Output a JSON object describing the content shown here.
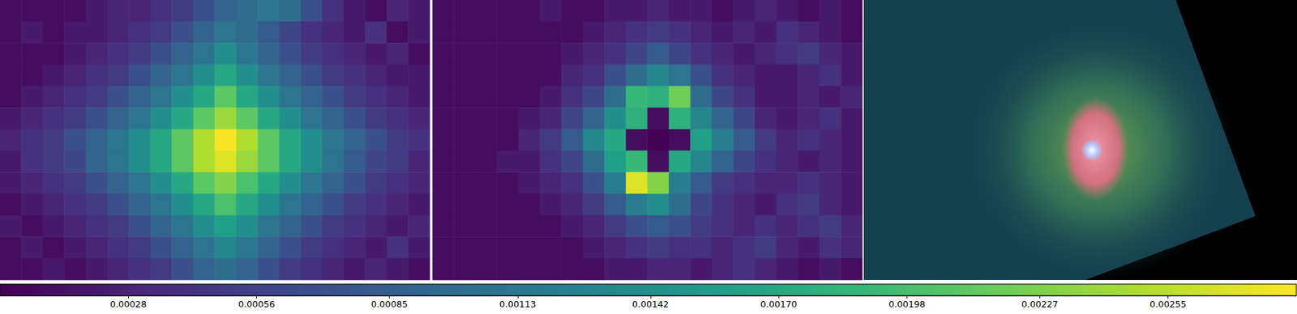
{
  "chart_data": {
    "type": "heatmap",
    "tick_labels": false,
    "panels": [
      {
        "cells": [
          [
            0.0001,
            0.0001,
            0.0001,
            0.0001,
            0.0002,
            0.0003,
            0.0003,
            0.0004,
            0.0005,
            0.0007,
            0.0009,
            0.001,
            0.0011,
            0.001,
            0.0007,
            0.0004,
            0.0002,
            0.0001,
            0.0003,
            0.0002
          ],
          [
            0.0001,
            0.0002,
            0.0001,
            0.0002,
            0.0002,
            0.0003,
            0.0004,
            0.0005,
            0.0007,
            0.0009,
            0.0011,
            0.001,
            0.0008,
            0.0006,
            0.0004,
            0.0003,
            0.0002,
            0.0004,
            0.0001,
            0.0002
          ],
          [
            0.0001,
            0.0001,
            0.0001,
            0.0002,
            0.0003,
            0.0004,
            0.0005,
            0.0007,
            0.0009,
            0.0011,
            0.0014,
            0.0011,
            0.0009,
            0.0007,
            0.0005,
            0.0004,
            0.0003,
            0.0002,
            0.0003,
            0.0001
          ],
          [
            0.0001,
            0.0001,
            0.0002,
            0.0003,
            0.0004,
            0.0005,
            0.0007,
            0.0009,
            0.0011,
            0.0014,
            0.0017,
            0.0014,
            0.0011,
            0.0009,
            0.0007,
            0.0005,
            0.0004,
            0.0003,
            0.0002,
            0.0002
          ],
          [
            0.0001,
            0.0002,
            0.0003,
            0.0004,
            0.0005,
            0.0007,
            0.0009,
            0.0011,
            0.0014,
            0.0017,
            0.0021,
            0.0017,
            0.0014,
            0.0011,
            0.0009,
            0.0007,
            0.0005,
            0.0004,
            0.0003,
            0.0002
          ],
          [
            0.0002,
            0.0003,
            0.0004,
            0.0005,
            0.0007,
            0.0009,
            0.0011,
            0.0014,
            0.0017,
            0.0021,
            0.0024,
            0.0021,
            0.0017,
            0.0014,
            0.0011,
            0.0009,
            0.0007,
            0.0005,
            0.0004,
            0.0003
          ],
          [
            0.0003,
            0.0004,
            0.0005,
            0.0007,
            0.0009,
            0.0011,
            0.0014,
            0.0017,
            0.0021,
            0.0025,
            0.0028,
            0.0025,
            0.0021,
            0.0017,
            0.0014,
            0.0011,
            0.0009,
            0.0007,
            0.0005,
            0.0004
          ],
          [
            0.0002,
            0.0004,
            0.0005,
            0.0006,
            0.0009,
            0.0011,
            0.0014,
            0.0017,
            0.0021,
            0.0025,
            0.0027,
            0.0024,
            0.0021,
            0.0017,
            0.0014,
            0.0011,
            0.0008,
            0.0006,
            0.0005,
            0.0003
          ],
          [
            0.0002,
            0.0003,
            0.0004,
            0.0005,
            0.0007,
            0.0009,
            0.0011,
            0.0014,
            0.0017,
            0.0021,
            0.0023,
            0.002,
            0.0017,
            0.0014,
            0.0011,
            0.0009,
            0.0007,
            0.0005,
            0.0004,
            0.0003
          ],
          [
            0.0001,
            0.0002,
            0.0003,
            0.0004,
            0.0005,
            0.0007,
            0.0009,
            0.0011,
            0.0014,
            0.0017,
            0.002,
            0.0017,
            0.0014,
            0.0011,
            0.0009,
            0.0007,
            0.0005,
            0.0004,
            0.0003,
            0.0002
          ],
          [
            0.0002,
            0.0001,
            0.0002,
            0.0003,
            0.0004,
            0.0005,
            0.0007,
            0.0009,
            0.0011,
            0.0014,
            0.0016,
            0.0014,
            0.0011,
            0.0009,
            0.0007,
            0.0005,
            0.0004,
            0.0003,
            0.0002,
            0.0003
          ],
          [
            0.0001,
            0.0002,
            0.0001,
            0.0002,
            0.0003,
            0.0004,
            0.0005,
            0.0007,
            0.0009,
            0.0011,
            0.0013,
            0.0011,
            0.0009,
            0.0007,
            0.0005,
            0.0004,
            0.0003,
            0.0002,
            0.0004,
            0.0002
          ],
          [
            0.0001,
            0.0001,
            0.0002,
            0.0001,
            0.0002,
            0.0003,
            0.0004,
            0.0005,
            0.0007,
            0.0009,
            0.001,
            0.0009,
            0.0007,
            0.0005,
            0.0004,
            0.0003,
            0.0002,
            0.0003,
            0.0002,
            0.0001
          ]
        ]
      },
      {
        "cells": [
          [
            0.0001,
            0.0001,
            0.0001,
            0.0001,
            0.0001,
            0.0002,
            0.0001,
            0.0001,
            0.0002,
            0.0002,
            0.0003,
            0.0002,
            0.0002,
            0.0001,
            0.0002,
            0.0003,
            0.0002,
            0.0001,
            0.0002,
            0.0001
          ],
          [
            0.0001,
            0.0001,
            0.0001,
            0.0001,
            0.0001,
            0.0001,
            0.0001,
            0.0002,
            0.0003,
            0.0004,
            0.0005,
            0.0004,
            0.0003,
            0.0002,
            0.0003,
            0.0002,
            0.0004,
            0.0003,
            0.0002,
            0.0001
          ],
          [
            0.0001,
            0.0001,
            0.0001,
            0.0001,
            0.0001,
            0.0001,
            0.0002,
            0.0003,
            0.0004,
            0.0006,
            0.0008,
            0.0006,
            0.0004,
            0.0003,
            0.0002,
            0.0003,
            0.0004,
            0.0005,
            0.0003,
            0.0002
          ],
          [
            0.0001,
            0.0001,
            0.0001,
            0.0001,
            0.0001,
            0.0001,
            0.0003,
            0.0004,
            0.0007,
            0.001,
            0.0013,
            0.0011,
            0.0007,
            0.0004,
            0.0003,
            0.0002,
            0.0002,
            0.0003,
            0.0004,
            0.0002
          ],
          [
            0.0001,
            0.0001,
            0.0001,
            0.0001,
            0.0001,
            0.0002,
            0.0004,
            0.0006,
            0.001,
            0.0019,
            0.0018,
            0.0022,
            0.001,
            0.0006,
            0.0004,
            0.0002,
            0.0002,
            0.0003,
            0.0002,
            0.0003
          ],
          [
            0.0001,
            0.0001,
            0.0001,
            0.0001,
            0.0002,
            0.0003,
            0.0006,
            0.0009,
            0.0014,
            0.0018,
            0.0001,
            0.0018,
            0.0013,
            0.0009,
            0.0006,
            0.0003,
            0.0002,
            0.0003,
            0.0004,
            0.0002
          ],
          [
            0.0001,
            0.0001,
            0.0001,
            0.0001,
            0.0003,
            0.0005,
            0.0008,
            0.0013,
            0.0017,
            0.0001,
            0,
            0.0001,
            0.0016,
            0.0012,
            0.0008,
            0.0005,
            0.0003,
            0.0004,
            0.0003,
            0.0002
          ],
          [
            0.0001,
            0.0001,
            0.0001,
            0.0002,
            0.0002,
            0.0004,
            0.0006,
            0.001,
            0.0016,
            0.0019,
            0.0001,
            0.0017,
            0.0013,
            0.0009,
            0.0006,
            0.0004,
            0.0003,
            0.0002,
            0.0003,
            0.0002
          ],
          [
            0.0001,
            0.0001,
            0.0001,
            0.0001,
            0.0002,
            0.0003,
            0.0004,
            0.0007,
            0.0012,
            0.0027,
            0.0023,
            0.0012,
            0.0008,
            0.0005,
            0.0004,
            0.0003,
            0.0003,
            0.0004,
            0.0003,
            0.0002
          ],
          [
            0.0001,
            0.0001,
            0.0001,
            0.0001,
            0.0001,
            0.0002,
            0.0003,
            0.0005,
            0.0008,
            0.0012,
            0.0014,
            0.001,
            0.0006,
            0.0004,
            0.0003,
            0.0002,
            0.0004,
            0.0005,
            0.0003,
            0.0002
          ],
          [
            0.0001,
            0.0001,
            0.0001,
            0.0001,
            0.0001,
            0.0001,
            0.0002,
            0.0003,
            0.0005,
            0.0007,
            0.0008,
            0.0007,
            0.0005,
            0.0004,
            0.0003,
            0.0004,
            0.0003,
            0.0004,
            0.0005,
            0.0003
          ],
          [
            0.0001,
            0.0001,
            0.0001,
            0.0001,
            0.0001,
            0.0001,
            0.0001,
            0.0002,
            0.0003,
            0.0004,
            0.0005,
            0.0004,
            0.0004,
            0.0003,
            0.0004,
            0.0005,
            0.0003,
            0.0002,
            0.0004,
            0.0003
          ],
          [
            0.0001,
            0.0001,
            0.0001,
            0.0001,
            0.0001,
            0.0001,
            0.0001,
            0.0001,
            0.0002,
            0.0002,
            0.0003,
            0.0003,
            0.0002,
            0.0003,
            0.0004,
            0.0003,
            0.0002,
            0.0001,
            0.0002,
            0.0001
          ]
        ]
      }
    ],
    "colorbar": {
      "range": [
        0,
        0.00283
      ],
      "ticks": [
        0.00028,
        0.00056,
        0.00085,
        0.00113,
        0.00142,
        {
          "value": 0.0017,
          "label": "0.00170"
        },
        0.00198,
        0.00227,
        0.00255
      ]
    }
  }
}
